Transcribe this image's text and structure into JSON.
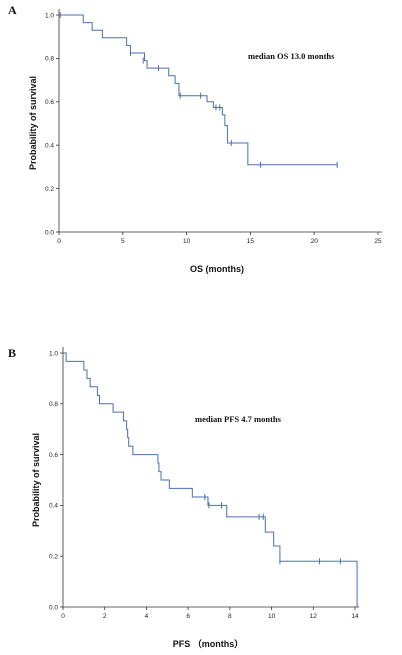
{
  "chart_data": [
    {
      "type": "line",
      "panel_label": "A",
      "annotation": "median OS 13.0 months",
      "xlabel": "OS (months)",
      "ylabel": "Probability of survival",
      "xlim": [
        0,
        25
      ],
      "ylim": [
        0,
        1
      ],
      "xticks": [
        "0",
        "5",
        "10",
        "15",
        "20",
        "25"
      ],
      "yticks": [
        "0.0",
        "0.2",
        "0.4",
        "0.6",
        "0.8",
        "1.0"
      ],
      "line_color": "#4a6fb0",
      "grid": false,
      "series": [
        {
          "steps": [
            [
              0,
              1.0
            ],
            [
              1.9,
              0.965
            ],
            [
              2.6,
              0.93
            ],
            [
              3.4,
              0.895
            ],
            [
              5.3,
              0.86
            ],
            [
              5.6,
              0.825
            ],
            [
              6.7,
              0.79
            ],
            [
              6.9,
              0.755
            ],
            [
              8.6,
              0.72
            ],
            [
              9.1,
              0.685
            ],
            [
              9.4,
              0.628
            ],
            [
              11.6,
              0.6
            ],
            [
              12.1,
              0.574
            ],
            [
              12.8,
              0.54
            ],
            [
              13.0,
              0.49
            ],
            [
              13.2,
              0.41
            ],
            [
              14.8,
              0.31
            ],
            [
              21.8,
              0.31
            ]
          ],
          "censored": [
            [
              0.1,
              1.0
            ],
            [
              5.6,
              0.825
            ],
            [
              6.6,
              0.79
            ],
            [
              7.8,
              0.755
            ],
            [
              9.5,
              0.628
            ],
            [
              11.1,
              0.628
            ],
            [
              12.3,
              0.574
            ],
            [
              12.6,
              0.574
            ],
            [
              13.5,
              0.41
            ],
            [
              15.8,
              0.31
            ],
            [
              21.8,
              0.31
            ]
          ]
        }
      ]
    },
    {
      "type": "line",
      "panel_label": "B",
      "annotation": "median PFS  4.7 months",
      "xlabel": "PFS （months）",
      "ylabel": "Probability of survival",
      "xlim": [
        0,
        14
      ],
      "ylim": [
        0,
        1
      ],
      "xticks": [
        "0",
        "2",
        "4",
        "6",
        "8",
        "10",
        "12",
        "14"
      ],
      "yticks": [
        "0.0",
        "0.2",
        "0.4",
        "0.6",
        "0.8",
        "1.0"
      ],
      "line_color": "#4a6fb0",
      "grid": false,
      "series": [
        {
          "steps": [
            [
              0,
              1.0
            ],
            [
              0.15,
              0.967
            ],
            [
              1.0,
              0.933
            ],
            [
              1.15,
              0.9
            ],
            [
              1.3,
              0.867
            ],
            [
              1.65,
              0.833
            ],
            [
              1.75,
              0.8
            ],
            [
              2.4,
              0.767
            ],
            [
              2.9,
              0.733
            ],
            [
              3.05,
              0.7
            ],
            [
              3.1,
              0.667
            ],
            [
              3.15,
              0.633
            ],
            [
              3.35,
              0.6
            ],
            [
              4.55,
              0.567
            ],
            [
              4.6,
              0.533
            ],
            [
              4.7,
              0.5
            ],
            [
              5.1,
              0.467
            ],
            [
              6.2,
              0.433
            ],
            [
              6.95,
              0.4
            ],
            [
              7.85,
              0.355
            ],
            [
              9.7,
              0.295
            ],
            [
              10.1,
              0.24
            ],
            [
              10.4,
              0.18
            ],
            [
              14.1,
              0.0
            ]
          ],
          "censored": [
            [
              6.8,
              0.433
            ],
            [
              7.0,
              0.4
            ],
            [
              7.6,
              0.4
            ],
            [
              9.4,
              0.355
            ],
            [
              9.6,
              0.355
            ],
            [
              10.4,
              0.18
            ],
            [
              12.3,
              0.18
            ],
            [
              13.3,
              0.18
            ]
          ]
        }
      ]
    }
  ]
}
